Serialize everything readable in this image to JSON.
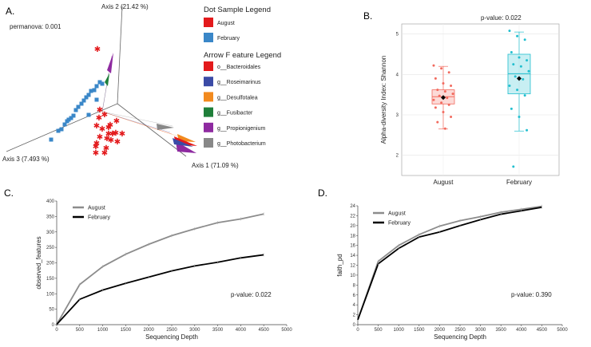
{
  "panels": {
    "a": "A.",
    "b": "B.",
    "c": "C.",
    "d": "D."
  },
  "chart_data": [
    {
      "panel": "A.",
      "type": "scatter",
      "annotation": "permanova: 0.001",
      "axis_labels": [
        "Axis 1 (71.09 %)",
        "Axis 2 (21.42 %)",
        "Axis 3 (7.493 %)"
      ],
      "dot_legend": {
        "title": "Dot Sample Legend",
        "items": [
          {
            "label": "August",
            "color": "#e31a1c",
            "marker": "star"
          },
          {
            "label": "February",
            "color": "#3a87c8",
            "marker": "square"
          }
        ]
      },
      "arrow_legend": {
        "title": "Arrow F eature Legend",
        "items": [
          {
            "label": "o__Bacteroidales",
            "color": "#e31a1c"
          },
          {
            "label": "g__Roseimarinus",
            "color": "#3b4ba6"
          },
          {
            "label": "g__Desulfotalea",
            "color": "#f28a1e"
          },
          {
            "label": "g__Fusibacter",
            "color": "#1f7f3a"
          },
          {
            "label": "g__Propionigenium",
            "color": "#8e2aa0"
          },
          {
            "label": "g__Photobacterium",
            "color": "#888888"
          }
        ]
      }
    },
    {
      "panel": "B.",
      "type": "box",
      "annotation": "p-value: 0.022",
      "categories": [
        "August",
        "February"
      ],
      "ylabel": "Alpha-diversity Index: Shannon",
      "ylim": [
        1.5,
        5.25
      ],
      "yticks": [
        2,
        3,
        4,
        5
      ],
      "series": [
        {
          "name": "August",
          "color": "#f26a5e",
          "q1": 3.27,
          "median": 3.45,
          "q3": 3.62,
          "whisker_low": 2.65,
          "whisker_high": 4.2,
          "mean": 3.43,
          "points": [
            4.22,
            4.15,
            4.05,
            3.9,
            3.78,
            3.72,
            3.62,
            3.58,
            3.52,
            3.47,
            3.42,
            3.37,
            3.3,
            3.25,
            3.18,
            3.07,
            2.95,
            2.82,
            2.66
          ]
        },
        {
          "name": "February",
          "color": "#22bfcf",
          "q1": 3.52,
          "median": 4.02,
          "q3": 4.5,
          "whisker_low": 2.6,
          "whisker_high": 5.05,
          "mean": 3.9,
          "points": [
            5.08,
            4.95,
            4.86,
            4.55,
            4.42,
            4.35,
            4.25,
            4.2,
            4.08,
            3.95,
            3.88,
            3.72,
            3.62,
            3.48,
            3.15,
            2.95,
            2.62,
            1.72
          ]
        }
      ]
    },
    {
      "panel": "C.",
      "type": "line",
      "annotation": "p-value: 0.022",
      "xlabel": "Sequencing Depth",
      "ylabel": "observed_features",
      "xlim": [
        0,
        5000
      ],
      "ylim": [
        0,
        400
      ],
      "xticks": [
        0,
        500,
        1000,
        1500,
        2000,
        2500,
        3000,
        3500,
        4000,
        4500,
        5000
      ],
      "yticks": [
        0,
        50,
        100,
        150,
        200,
        250,
        300,
        350,
        400
      ],
      "x": [
        1,
        500,
        1000,
        1500,
        2000,
        2500,
        3000,
        3500,
        4000,
        4500
      ],
      "series": [
        {
          "name": "August",
          "color": "#8c8c8c",
          "values": [
            1,
            130,
            188,
            228,
            260,
            288,
            310,
            330,
            342,
            358
          ]
        },
        {
          "name": "February",
          "color": "#000000",
          "values": [
            1,
            82,
            112,
            134,
            154,
            174,
            190,
            202,
            216,
            226
          ]
        }
      ]
    },
    {
      "panel": "D.",
      "type": "line",
      "annotation": "p-value: 0.390",
      "xlabel": "Sequencing Depth",
      "ylabel": "faith_pd",
      "xlim": [
        0,
        5000
      ],
      "ylim": [
        0,
        24
      ],
      "xticks": [
        0,
        500,
        1000,
        1500,
        2000,
        2500,
        3000,
        3500,
        4000,
        4500,
        5000
      ],
      "yticks": [
        0,
        2,
        4,
        6,
        8,
        10,
        12,
        14,
        16,
        18,
        20,
        22,
        24
      ],
      "x": [
        1,
        500,
        1000,
        1500,
        2000,
        2500,
        3000,
        3500,
        4000,
        4500
      ],
      "series": [
        {
          "name": "August",
          "color": "#8c8c8c",
          "values": [
            1,
            12.8,
            16.0,
            18.2,
            19.9,
            21.0,
            21.8,
            22.7,
            23.3,
            23.9
          ]
        },
        {
          "name": "February",
          "color": "#000000",
          "values": [
            1,
            12.3,
            15.4,
            17.7,
            18.7,
            20.0,
            21.2,
            22.3,
            23.0,
            23.7
          ]
        }
      ]
    }
  ]
}
